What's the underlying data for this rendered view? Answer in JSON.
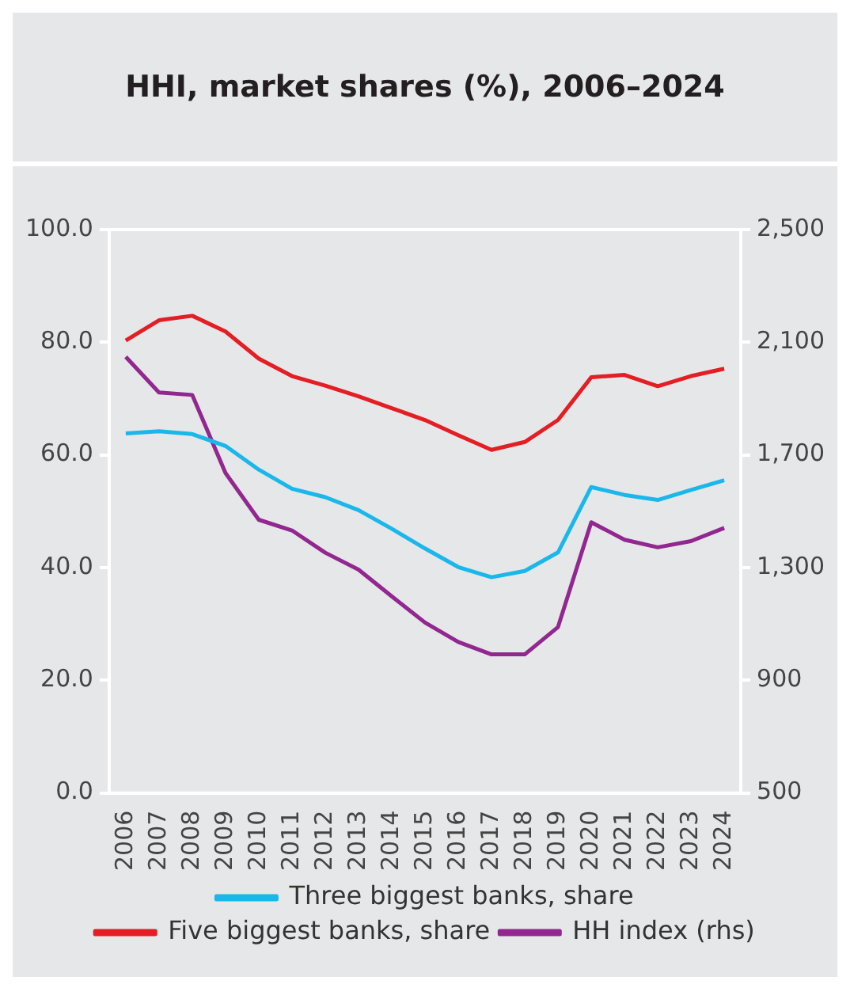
{
  "chart_data": {
    "type": "line",
    "title": "HHI, market shares (%), 2006–2024",
    "categories": [
      "2006",
      "2007",
      "2008",
      "2009",
      "2010",
      "2011",
      "2012",
      "2013",
      "2014",
      "2015",
      "2016",
      "2017",
      "2018",
      "2019",
      "2020",
      "2021",
      "2022",
      "2023",
      "2024"
    ],
    "series": [
      {
        "name": "Three biggest banks, share",
        "color": "#1ab7ea",
        "values": [
          63.8,
          64.2,
          63.7,
          61.6,
          57.4,
          54.0,
          52.5,
          50.2,
          46.9,
          43.4,
          40.1,
          38.3,
          39.4,
          42.7,
          54.3,
          52.9,
          52.0,
          53.8,
          55.5
        ]
      },
      {
        "name": "Five biggest banks, share",
        "color": "#e31e24",
        "values": [
          80.3,
          83.9,
          84.7,
          81.9,
          77.1,
          74.0,
          72.3,
          70.4,
          68.3,
          66.2,
          63.5,
          60.9,
          62.3,
          66.2,
          73.8,
          74.2,
          72.2,
          74.0,
          75.3
        ]
      },
      {
        "name": "HH index (rhs)",
        "color": "#92278f",
        "axis": "y2",
        "values": [
          2048,
          1922,
          1913,
          1636,
          1470,
          1432,
          1353,
          1293,
          1198,
          1105,
          1036,
          992,
          992,
          1089,
          1461,
          1399,
          1372,
          1394,
          1441
        ]
      }
    ],
    "ylim": [
      0,
      100
    ],
    "yticks": [
      {
        "value": 0,
        "label": "0.0"
      },
      {
        "value": 20,
        "label": "20.0"
      },
      {
        "value": 40,
        "label": "40.0"
      },
      {
        "value": 60,
        "label": "60.0"
      },
      {
        "value": 80,
        "label": "80.0"
      },
      {
        "value": 100,
        "label": "100.0"
      }
    ],
    "y2lim": [
      500,
      2500
    ],
    "y2ticks": [
      500,
      900,
      {
        "value": 1300,
        "label": "1,300"
      },
      {
        "value": 1700,
        "label": "1,700"
      },
      {
        "value": 2100,
        "label": "2,100"
      },
      {
        "value": 2500,
        "label": "2,500"
      }
    ],
    "grid": false,
    "legend": "bottom",
    "marker": "none",
    "line_style": "solid"
  }
}
